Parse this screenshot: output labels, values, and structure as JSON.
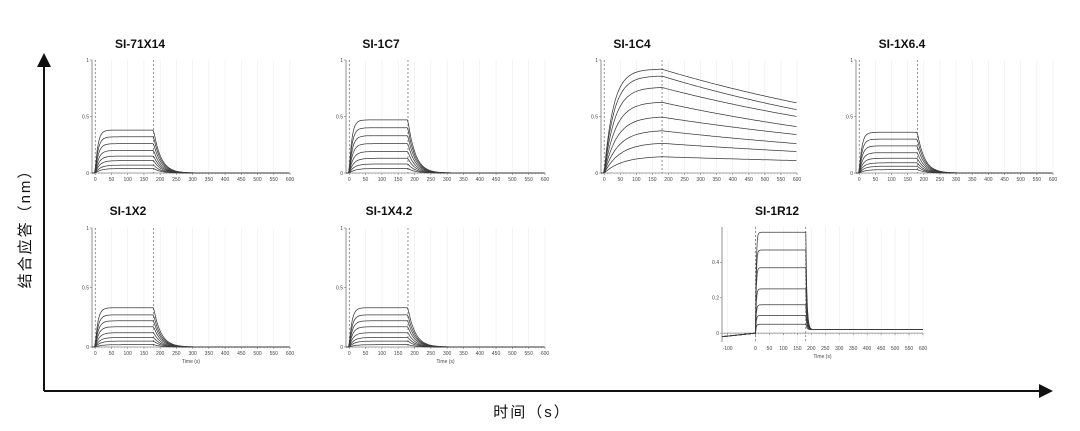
{
  "figure": {
    "x_axis_title": "时间（s）",
    "y_axis_title": "结合应答（nm）"
  },
  "chart_data": [
    {
      "type": "line",
      "title": "SI-71X14",
      "kind": "fast",
      "xlim": [
        -10,
        600
      ],
      "ylim": [
        0,
        1
      ],
      "yticks": [
        "0",
        "0.5",
        "1"
      ],
      "xticks": [
        0,
        50,
        100,
        150,
        200,
        250,
        300,
        350,
        400,
        450,
        500,
        550,
        600
      ],
      "xlabel": "",
      "ylabel": "",
      "assoc_end": 180,
      "plateaus": [
        0.38,
        0.32,
        0.26,
        0.2,
        0.15,
        0.11,
        0.07,
        0.04
      ]
    },
    {
      "type": "line",
      "title": "SI-1C7",
      "kind": "fast",
      "xlim": [
        -10,
        600
      ],
      "ylim": [
        0,
        1
      ],
      "yticks": [
        "0",
        "0.5",
        "1"
      ],
      "xticks": [
        0,
        50,
        100,
        150,
        200,
        250,
        300,
        350,
        400,
        450,
        500,
        550,
        600
      ],
      "xlabel": "",
      "ylabel": "",
      "assoc_end": 180,
      "plateaus": [
        0.47,
        0.4,
        0.33,
        0.26,
        0.19,
        0.13,
        0.08,
        0.04
      ]
    },
    {
      "type": "line",
      "title": "SI-1C4",
      "kind": "slow",
      "xlim": [
        -10,
        600
      ],
      "ylim": [
        0,
        1
      ],
      "yticks": [
        "0",
        "0.5",
        "1"
      ],
      "xticks": [
        0,
        50,
        100,
        150,
        200,
        250,
        300,
        350,
        400,
        450,
        500,
        550,
        600
      ],
      "xlabel": "",
      "ylabel": "",
      "assoc_end": 180,
      "peaks": [
        0.92,
        0.86,
        0.76,
        0.63,
        0.5,
        0.38,
        0.27,
        0.15
      ],
      "ends": [
        0.62,
        0.56,
        0.5,
        0.41,
        0.34,
        0.26,
        0.19,
        0.11
      ]
    },
    {
      "type": "line",
      "title": "SI-1X6.4",
      "kind": "fast",
      "xlim": [
        -10,
        600
      ],
      "ylim": [
        0,
        1
      ],
      "yticks": [
        "0",
        "0.5",
        "1"
      ],
      "xticks": [
        0,
        50,
        100,
        150,
        200,
        250,
        300,
        350,
        400,
        450,
        500,
        550,
        600
      ],
      "xlabel": "",
      "ylabel": "",
      "assoc_end": 180,
      "plateaus": [
        0.36,
        0.3,
        0.24,
        0.18,
        0.13,
        0.09,
        0.06,
        0.03
      ]
    },
    {
      "type": "line",
      "title": "SI-1X2",
      "kind": "fast",
      "xlim": [
        -10,
        600
      ],
      "ylim": [
        0,
        1
      ],
      "yticks": [
        "0",
        "0.5",
        "1"
      ],
      "xticks": [
        0,
        50,
        100,
        150,
        200,
        250,
        300,
        350,
        400,
        450,
        500,
        550,
        600
      ],
      "xlabel": "Time (s)",
      "ylabel": "",
      "assoc_end": 180,
      "plateaus": [
        0.33,
        0.27,
        0.22,
        0.17,
        0.12,
        0.08,
        0.05,
        0.02
      ]
    },
    {
      "type": "line",
      "title": "SI-1X4.2",
      "kind": "fast",
      "xlim": [
        -10,
        600
      ],
      "ylim": [
        0,
        1
      ],
      "yticks": [
        "0",
        "0.5",
        "1"
      ],
      "xticks": [
        0,
        50,
        100,
        150,
        200,
        250,
        300,
        350,
        400,
        450,
        500,
        550,
        600
      ],
      "xlabel": "Time (s)",
      "ylabel": "",
      "assoc_end": 180,
      "plateaus": [
        0.33,
        0.27,
        0.22,
        0.17,
        0.12,
        0.08,
        0.05,
        0.02
      ]
    },
    {
      "type": "line",
      "title": "SI-1R12",
      "kind": "step",
      "xlim": [
        -120,
        600
      ],
      "ylim": [
        -0.05,
        0.6
      ],
      "yticks": [
        "0",
        "0.2",
        "0.4"
      ],
      "ytick_values": [
        0,
        0.2,
        0.4
      ],
      "xticks": [
        -100,
        0,
        50,
        100,
        150,
        200,
        250,
        300,
        350,
        400,
        450,
        500,
        550,
        600
      ],
      "xlabel": "Time (s)",
      "ylabel": "",
      "assoc_start": 0,
      "assoc_end": 180,
      "plateaus": [
        0.57,
        0.47,
        0.37,
        0.25,
        0.16,
        0.1,
        0.05
      ]
    }
  ]
}
